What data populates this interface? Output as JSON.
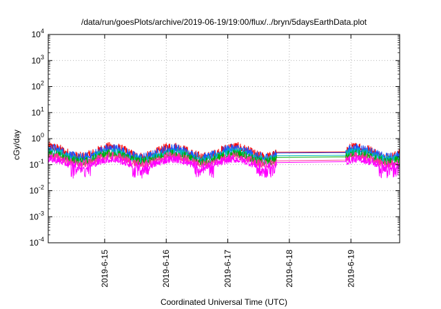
{
  "chart_data": {
    "type": "line",
    "title": "/data/run/goesPlots/archive/2019-06-19/19:00/flux/../bryn/5daysEarthData.plot",
    "xlabel": "Coordinated Universal Time (UTC)",
    "ylabel": "cGy/day",
    "yscale": "log",
    "ylim": [
      0.0001,
      10000
    ],
    "y_ticks": [
      {
        "base": "10",
        "exp": "-4"
      },
      {
        "base": "10",
        "exp": "-3"
      },
      {
        "base": "10",
        "exp": "-2"
      },
      {
        "base": "10",
        "exp": "-1"
      },
      {
        "base": "10",
        "exp": "0"
      },
      {
        "base": "10",
        "exp": "1"
      },
      {
        "base": "10",
        "exp": "2"
      },
      {
        "base": "10",
        "exp": "3"
      },
      {
        "base": "10",
        "exp": "4"
      }
    ],
    "xlim": [
      "2019-06-14 02:00",
      "2019-06-19 19:00"
    ],
    "x_ticks": [
      "2019-6-15",
      "2019-6-16",
      "2019-6-17",
      "2019-6-18",
      "2019-6-19"
    ],
    "grid": true,
    "data_gap": [
      "2019-06-17 19:00",
      "2019-06-18 22:00"
    ],
    "series": [
      {
        "color": "#ff0000",
        "base": 0.28,
        "amplitude": 0.55,
        "spike": 1.55,
        "gap_values": [
          0.3,
          0.31
        ]
      },
      {
        "color": "#1a55ff",
        "base": 0.26,
        "amplitude": 0.5,
        "spike": 1.45,
        "gap_values": [
          0.28,
          0.29
        ]
      },
      {
        "color": "#00bbbb",
        "base": 0.2,
        "amplitude": 0.45,
        "spike": 1.35,
        "gap_values": [
          0.22,
          0.23
        ]
      },
      {
        "color": "#00aa00",
        "base": 0.17,
        "amplitude": 0.45,
        "spike": 1.3,
        "gap_values": [
          0.19,
          0.2
        ]
      },
      {
        "color": "#ff3399",
        "base": 0.14,
        "amplitude": 0.45,
        "spike": 1.25,
        "gap_values": [
          0.14,
          0.15
        ]
      },
      {
        "color": "#ff00ff",
        "base": 0.11,
        "amplitude": 0.4,
        "spike": 1.2,
        "dip": 0.03,
        "gap_values": [
          0.12,
          0.13
        ]
      }
    ]
  }
}
